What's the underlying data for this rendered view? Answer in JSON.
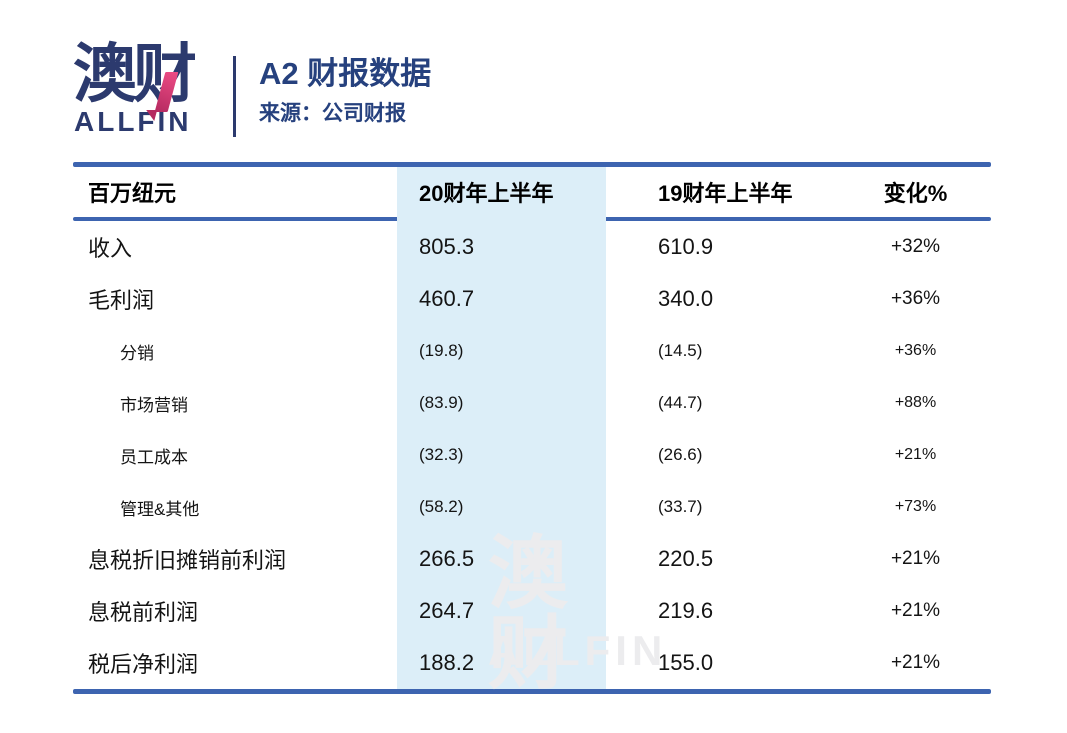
{
  "brand": {
    "logo_zh": "澳财",
    "logo_en": "ALLFIN"
  },
  "header": {
    "title": "A2 财报数据",
    "source": "来源：公司财报"
  },
  "watermark": {
    "zh": "澳财",
    "en": "ALLFIN"
  },
  "colors": {
    "brand_navy": "#2c3a6e",
    "title_blue": "#26417e",
    "rule_blue": "#3d64b0",
    "highlight_column_bg": "#dceef8",
    "accent_pink_top": "#ee4d86",
    "accent_pink_bottom": "#b52a60",
    "watermark_gray": "#ececee",
    "text_black": "#141414"
  },
  "chart_data": {
    "type": "table",
    "title": "A2 财报数据",
    "source": "来源：公司财报",
    "unit_label": "百万纽元",
    "columns": [
      "百万纽元",
      "20财年上半年",
      "19财年上半年",
      "变化%"
    ],
    "highlighted_column": "20财年上半年",
    "rows": [
      {
        "label": "收入",
        "fy20_h1": "805.3",
        "fy19_h1": "610.9",
        "change": "+32%",
        "sub": false
      },
      {
        "label": "毛利润",
        "fy20_h1": "460.7",
        "fy19_h1": "340.0",
        "change": "+36%",
        "sub": false
      },
      {
        "label": "分销",
        "fy20_h1": "(19.8)",
        "fy19_h1": "(14.5)",
        "change": "+36%",
        "sub": true
      },
      {
        "label": "市场营销",
        "fy20_h1": "(83.9)",
        "fy19_h1": "(44.7)",
        "change": "+88%",
        "sub": true
      },
      {
        "label": "员工成本",
        "fy20_h1": "(32.3)",
        "fy19_h1": "(26.6)",
        "change": "+21%",
        "sub": true
      },
      {
        "label": "管理&其他",
        "fy20_h1": "(58.2)",
        "fy19_h1": "(33.7)",
        "change": "+73%",
        "sub": true
      },
      {
        "label": "息税折旧摊销前利润",
        "fy20_h1": "266.5",
        "fy19_h1": "220.5",
        "change": "+21%",
        "sub": false
      },
      {
        "label": "息税前利润",
        "fy20_h1": "264.7",
        "fy19_h1": "219.6",
        "change": "+21%",
        "sub": false
      },
      {
        "label": "税后净利润",
        "fy20_h1": "188.2",
        "fy19_h1": "155.0",
        "change": "+21%",
        "sub": false
      }
    ]
  }
}
